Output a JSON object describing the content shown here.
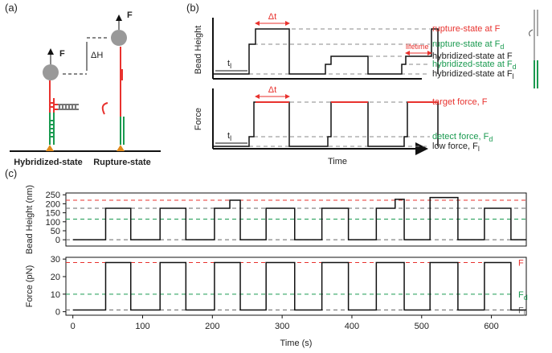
{
  "panel_a": {
    "label": "(a)",
    "force_left": "F",
    "delta_h": "ΔH",
    "force_right": "F",
    "state_left": "Hybridized-state",
    "state_right": "Rupture-state"
  },
  "panel_b": {
    "label": "(b)",
    "height_axis": "Bead Height",
    "force_axis": "Force",
    "time_axis": "Time",
    "top_dt": "Δt",
    "top_t": {
      "text": "t",
      "sub": "l"
    },
    "height_levels": [
      {
        "text": "rupture-state at F",
        "color": "#e8322e"
      },
      {
        "text": "rupture-state at F",
        "sub": "d",
        "color": "#1a9a50"
      },
      {
        "text": "hybridized-state at F",
        "color": "#222222"
      },
      {
        "text": "hybridized-state at F",
        "sub": "d",
        "color": "#1a9a50"
      },
      {
        "text": "hybridized-state at F",
        "sub": "l",
        "color": "#222222"
      }
    ],
    "lifetime": "lifetime",
    "bottom_dt": "Δt",
    "bottom_t": {
      "text": "t",
      "sub": "l"
    },
    "force_levels": [
      {
        "text": "target force, F",
        "color": "#e8322e"
      },
      {
        "text": "detect force, F",
        "sub": "d",
        "color": "#1a9a50"
      },
      {
        "text": "low force, F",
        "sub": "l",
        "color": "#222222"
      }
    ]
  },
  "panel_c": {
    "label": "(c)"
  },
  "chart_data": [
    {
      "type": "line",
      "y_label": "Bead Height (nm)",
      "xlim": [
        -10,
        650
      ],
      "ylim": [
        -35,
        260
      ],
      "yticks": [
        0,
        50,
        100,
        150,
        200,
        250
      ],
      "x": [
        0,
        47,
        47,
        83,
        83,
        125,
        125,
        162,
        162,
        203,
        203,
        225,
        225,
        240,
        240,
        277,
        277,
        318,
        318,
        357,
        357,
        395,
        395,
        435,
        435,
        462,
        462,
        475,
        475,
        512,
        512,
        552,
        552,
        590,
        590,
        628,
        628,
        650
      ],
      "values": [
        0,
        0,
        175,
        175,
        0,
        0,
        175,
        175,
        0,
        0,
        175,
        175,
        220,
        220,
        0,
        0,
        175,
        175,
        0,
        0,
        175,
        175,
        0,
        0,
        175,
        175,
        225,
        225,
        0,
        0,
        235,
        235,
        0,
        0,
        175,
        175,
        0,
        0
      ],
      "color": "#111111",
      "hlines": [
        {
          "value": 220,
          "color": "#e8322e"
        },
        {
          "value": 175,
          "color": "#666666"
        },
        {
          "value": 115,
          "color": "#1a9a50"
        },
        {
          "value": 0,
          "color": "#666666"
        }
      ]
    },
    {
      "type": "line",
      "y_label": "Force (pN)",
      "x_label": "Time (s)",
      "xlim": [
        -10,
        650
      ],
      "ylim": [
        -2,
        31
      ],
      "yticks": [
        0,
        10,
        20,
        30
      ],
      "xticks": [
        0,
        100,
        200,
        300,
        400,
        500,
        600
      ],
      "x": [
        0,
        47,
        47,
        83,
        83,
        125,
        125,
        162,
        162,
        203,
        203,
        225,
        225,
        240,
        240,
        277,
        277,
        318,
        318,
        357,
        357,
        395,
        395,
        435,
        435,
        462,
        462,
        475,
        475,
        512,
        512,
        552,
        552,
        590,
        590,
        628,
        628,
        650
      ],
      "values": [
        1,
        1,
        28,
        28,
        1,
        1,
        28,
        28,
        1,
        1,
        28,
        28,
        28,
        28,
        1,
        1,
        28,
        28,
        1,
        1,
        28,
        28,
        1,
        1,
        28,
        28,
        28,
        28,
        1,
        1,
        28,
        28,
        1,
        1,
        28,
        28,
        1,
        1
      ],
      "color": "#111111",
      "hlines": [
        {
          "value": 28,
          "color": "#e8322e",
          "label": "F"
        },
        {
          "value": 10,
          "color": "#1a9a50",
          "label": "F",
          "sub": "d"
        },
        {
          "value": 1,
          "color": "#666666",
          "label": "F",
          "sub": "l"
        }
      ]
    }
  ]
}
